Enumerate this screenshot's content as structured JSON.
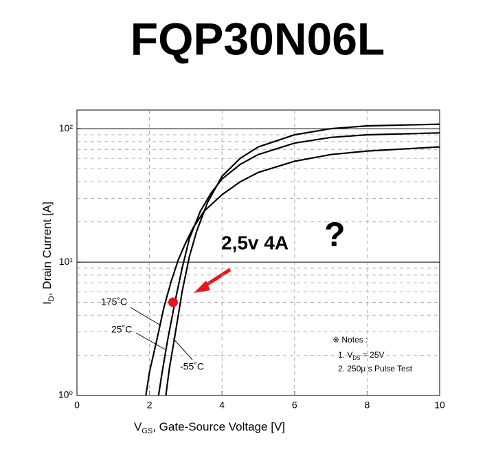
{
  "chart_data": {
    "type": "line",
    "title": "FQP30N06L",
    "xlabel": {
      "main": "V",
      "sub": "GS",
      "rest": ", Gate-Source Voltage [V]"
    },
    "ylabel": {
      "main": "I",
      "sub": "D",
      "rest": ", Drain Current [A]"
    },
    "xlim": [
      0,
      10
    ],
    "xticks": [
      0,
      2,
      4,
      6,
      8,
      10
    ],
    "ylim": [
      1,
      138
    ],
    "yticks": [
      {
        "value": 1,
        "label": "10⁰"
      },
      {
        "value": 10,
        "label": "10¹"
      },
      {
        "value": 100,
        "label": "10²"
      }
    ],
    "log_y": true,
    "y_minor_grid": [
      2,
      3,
      4,
      5,
      6,
      7,
      8,
      9,
      20,
      30,
      40,
      50,
      60,
      70,
      80,
      90
    ],
    "grid": true,
    "series": [
      {
        "name": "175˚C",
        "color": "#000000",
        "x": [
          1.9,
          2.0,
          2.2,
          2.4,
          2.6,
          2.8,
          3.0,
          3.2,
          3.5,
          4.0,
          4.5,
          5.0,
          6.0,
          7.0,
          8.0,
          10.0
        ],
        "values": [
          1,
          1.5,
          2.6,
          4.6,
          7.2,
          10.5,
          14,
          18,
          24,
          32,
          40,
          47,
          57,
          64,
          68,
          73
        ]
      },
      {
        "name": "25˚C",
        "color": "#000000",
        "x": [
          2.25,
          2.35,
          2.5,
          2.7,
          2.9,
          3.1,
          3.4,
          3.7,
          4.0,
          4.5,
          5.0,
          6.0,
          7.0,
          8.0,
          10.0
        ],
        "values": [
          1,
          1.5,
          2.6,
          5,
          9,
          15,
          24,
          33,
          42,
          54,
          64,
          78,
          86,
          90,
          93
        ]
      },
      {
        "name": "-55˚C",
        "color": "#000000",
        "x": [
          2.45,
          2.55,
          2.7,
          2.9,
          3.1,
          3.3,
          3.6,
          4.0,
          4.5,
          5.0,
          6.0,
          7.0,
          8.0,
          10.0
        ],
        "values": [
          1,
          1.6,
          2.8,
          6,
          11,
          17,
          28,
          44,
          60,
          73,
          90,
          100,
          105,
          108
        ]
      }
    ],
    "notes": {
      "title": "※ Notes :",
      "line1": {
        "pre": "1. V",
        "sub": "DS",
        "rest": " = 25V"
      },
      "line2": "2. 250μ s Pulse Test"
    },
    "annotation": {
      "text": "2,5v 4A",
      "mark": "?",
      "color": "#e8141b",
      "x": 2.65,
      "y": 5
    }
  }
}
